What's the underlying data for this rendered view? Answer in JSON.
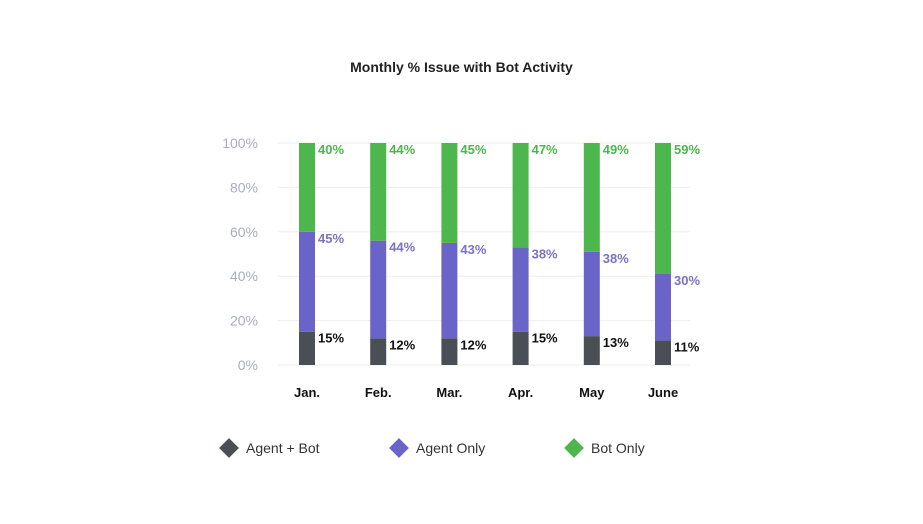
{
  "chart_data": {
    "type": "bar",
    "stacked": true,
    "title": "Monthly % Issue with Bot Activity",
    "xlabel": "",
    "ylabel": "",
    "ylim": [
      0,
      100
    ],
    "yticks": [
      "0%",
      "20%",
      "40%",
      "60%",
      "80%",
      "100%"
    ],
    "categories": [
      "Jan.",
      "Feb.",
      "Mar.",
      "Apr.",
      "May",
      "June"
    ],
    "series": [
      {
        "name": "Agent + Bot",
        "color": "#4a4e55",
        "label_color": "#111111",
        "values": [
          15,
          12,
          12,
          15,
          13,
          11
        ],
        "labels": [
          "15%",
          "12%",
          "12%",
          "15%",
          "13%",
          "11%"
        ]
      },
      {
        "name": "Agent Only",
        "color": "#6b64c8",
        "label_color": "#7a72c4",
        "values": [
          45,
          44,
          43,
          38,
          38,
          30
        ],
        "labels": [
          "45%",
          "44%",
          "43%",
          "38%",
          "38%",
          "30%"
        ]
      },
      {
        "name": "Bot Only",
        "color": "#4db64d",
        "label_color": "#4db64d",
        "values": [
          40,
          44,
          45,
          47,
          49,
          59
        ],
        "labels": [
          "40%",
          "44%",
          "45%",
          "47%",
          "49%",
          "59%"
        ]
      }
    ],
    "grid": true,
    "legend": "bottom"
  }
}
